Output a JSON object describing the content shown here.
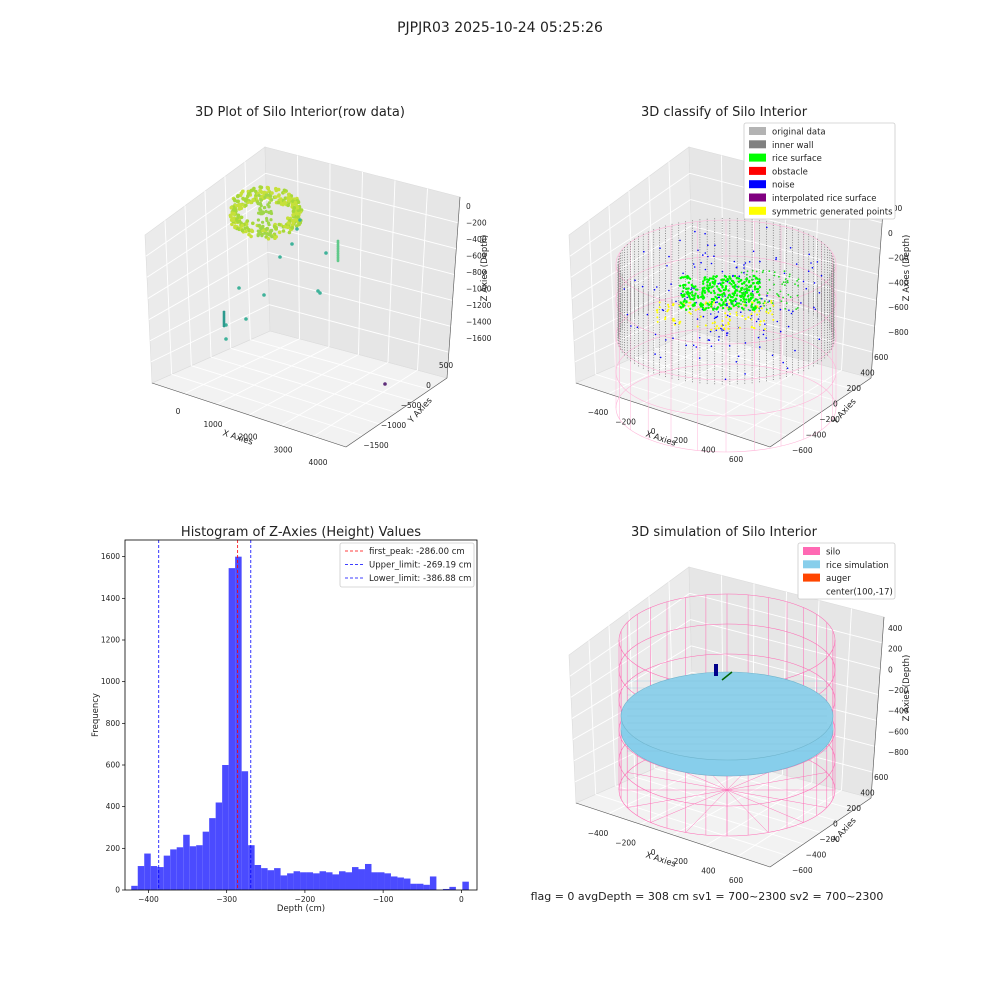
{
  "suptitle": "PJPJR03 2025-10-24 05:25:26",
  "panels": {
    "raw": {
      "title": "3D Plot of Silo Interior(row data)",
      "xlabel": "X Axies",
      "ylabel": "Y Axies",
      "zlabel": "Z Axies (Depth)",
      "xticks": [
        "0",
        "1000",
        "2000",
        "3000",
        "4000"
      ],
      "yticks": [
        "500",
        "0",
        "−500",
        "−1000",
        "−1500"
      ],
      "zticks": [
        "0",
        "−200",
        "−400",
        "−600",
        "−800",
        "−1000",
        "−1200",
        "−1400",
        "−1600"
      ]
    },
    "classify": {
      "title": "3D classify of Silo Interior",
      "xlabel": "X Axies",
      "ylabel": "Y Axies",
      "zlabel": "Z Axies (Depth)",
      "xticks": [
        "−400",
        "−200",
        "0",
        "200",
        "400",
        "600"
      ],
      "yticks": [
        "600",
        "400",
        "200",
        "0",
        "−200",
        "−400",
        "−600"
      ],
      "zticks": [
        "200",
        "0",
        "−200",
        "−400",
        "−600",
        "−800"
      ],
      "legend": [
        {
          "label": "original data",
          "color": "#b3b3b3"
        },
        {
          "label": "inner wall",
          "color": "#808080"
        },
        {
          "label": "rice surface",
          "color": "#00ff00"
        },
        {
          "label": "obstacle",
          "color": "#ff0000"
        },
        {
          "label": "noise",
          "color": "#0000ff"
        },
        {
          "label": "interpolated rice surface",
          "color": "#800080"
        },
        {
          "label": "symmetric generated points",
          "color": "#ffff00"
        }
      ]
    },
    "simulation": {
      "title": "3D simulation of Silo Interior",
      "xlabel": "X Axies",
      "ylabel": "Y Axies",
      "zlabel": "Z Axies (Depth)",
      "xticks": [
        "−400",
        "−200",
        "0",
        "200",
        "400",
        "600"
      ],
      "yticks": [
        "600",
        "400",
        "200",
        "0",
        "−200",
        "−400",
        "−600"
      ],
      "zticks": [
        "400",
        "200",
        "0",
        "−200",
        "−400",
        "−600",
        "−800"
      ],
      "legend": [
        {
          "label": "silo",
          "color": "#ff69b4"
        },
        {
          "label": "rice simulation",
          "color": "#87ceeb"
        },
        {
          "label": "auger",
          "color": "#ff4500"
        },
        {
          "label": "center(100,-17)",
          "color": ""
        }
      ]
    }
  },
  "footer": "flag = 0     avgDepth = 308 cm  sv1 = 700~2300  sv2 = 700~2300",
  "chart_data": {
    "type": "bar",
    "title": "Histogram of Z-Axies (Height) Values",
    "xlabel": "Depth (cm)",
    "ylabel": "Frequency",
    "xlim": [
      -430,
      20
    ],
    "ylim": [
      0,
      1680
    ],
    "xticks": [
      -400,
      -300,
      -200,
      -100,
      0
    ],
    "yticks": [
      0,
      200,
      400,
      600,
      800,
      1000,
      1200,
      1400,
      1600
    ],
    "bar_color": "#4b4bff",
    "bin_start": -422,
    "bin_width": 8.3,
    "values": [
      20,
      115,
      175,
      115,
      110,
      165,
      195,
      205,
      265,
      210,
      215,
      280,
      345,
      420,
      600,
      1545,
      1600,
      570,
      215,
      120,
      105,
      95,
      105,
      70,
      80,
      90,
      85,
      85,
      80,
      90,
      85,
      75,
      90,
      85,
      110,
      100,
      125,
      85,
      85,
      80,
      65,
      60,
      55,
      30,
      30,
      25,
      65,
      0,
      5,
      15,
      0,
      40
    ],
    "vlines": [
      {
        "value": -286.0,
        "color": "#ff0000",
        "label": "first_peak: -286.00 cm"
      },
      {
        "value": -269.19,
        "color": "#0000ff",
        "label": "Upper_limit: -269.19 cm"
      },
      {
        "value": -386.88,
        "color": "#0000ff",
        "label": "Lower_limit: -386.88 cm"
      }
    ],
    "legend_position": "top-right"
  }
}
